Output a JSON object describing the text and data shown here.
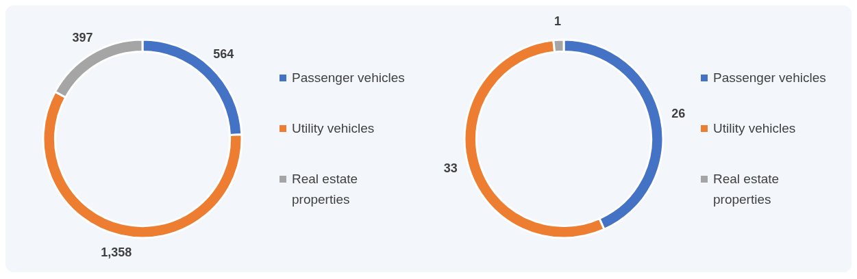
{
  "chart_data": [
    {
      "type": "donut",
      "categories": [
        "Passenger vehicles",
        "Utility vehicles",
        "Real estate properties"
      ],
      "values": [
        564,
        1358,
        397
      ],
      "colors": [
        "#4472c4",
        "#ed7d31",
        "#a5a5a5"
      ],
      "legend": "right",
      "value_labels": [
        "564",
        "1,358",
        "397"
      ]
    },
    {
      "type": "donut",
      "categories": [
        "Passenger vehicles",
        "Utility vehicles",
        "Real estate properties"
      ],
      "values": [
        26,
        33,
        1
      ],
      "colors": [
        "#4472c4",
        "#ed7d31",
        "#a5a5a5"
      ],
      "legend": "right",
      "value_labels": [
        "26",
        "33",
        "1"
      ]
    }
  ]
}
